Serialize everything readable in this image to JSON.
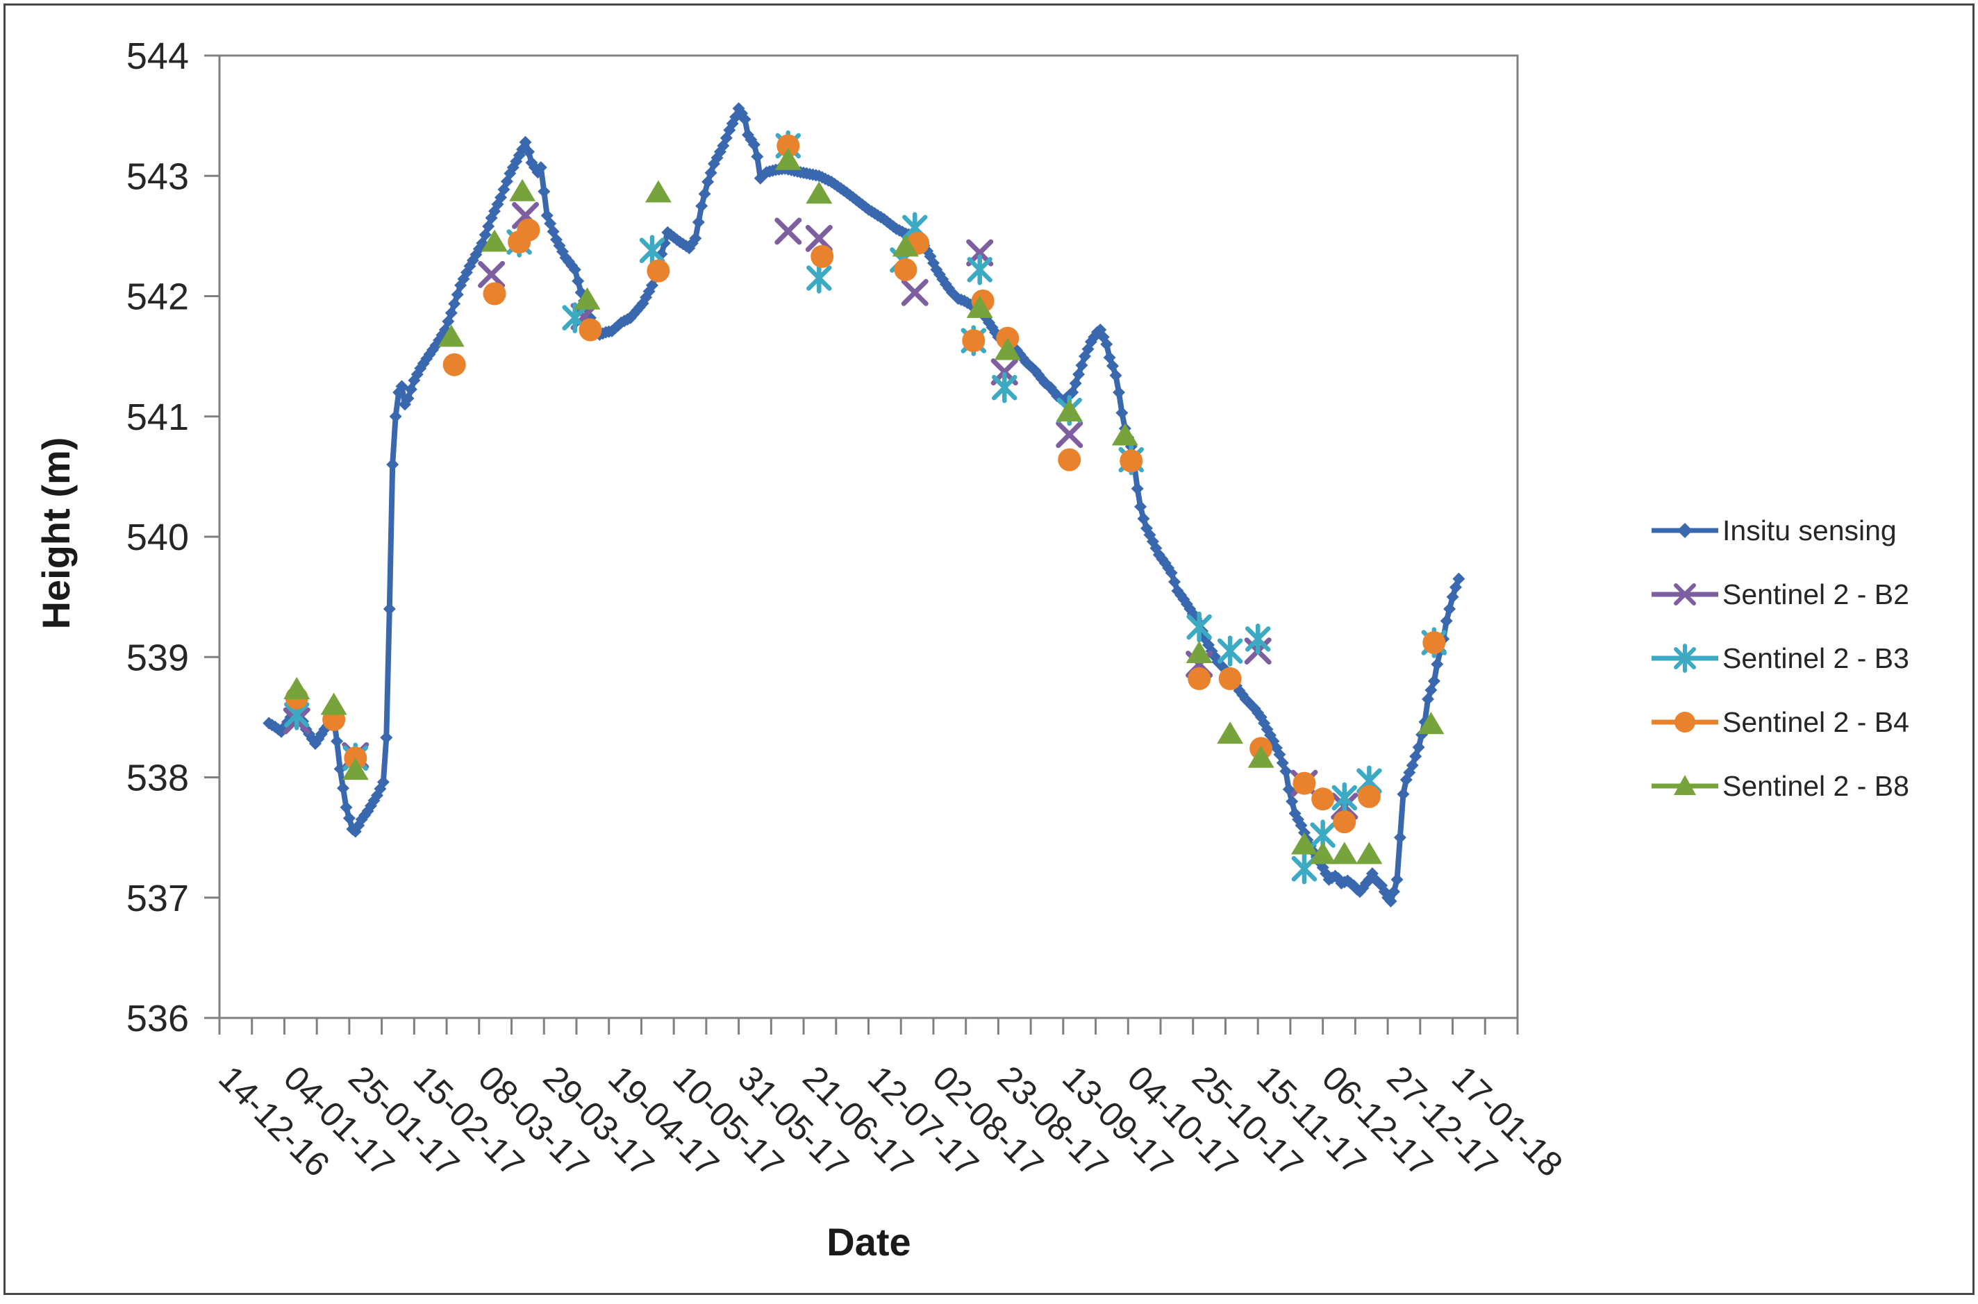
{
  "figure": {
    "background": "#ffffff",
    "border_color": "#464646",
    "frame_color": "#808080",
    "text_color": "#262626"
  },
  "chart_data": {
    "type": "line",
    "title": "",
    "xlabel": "Date",
    "ylabel": "Height (m)",
    "ylim": [
      536,
      544
    ],
    "yticks": [
      536,
      537,
      538,
      539,
      540,
      541,
      542,
      543,
      544
    ],
    "grid": false,
    "legend_position": "right",
    "x_axis": {
      "date_of_day0": "14-12-16",
      "label_interval_days": 21,
      "minor_tick_interval_days": 10.5,
      "axis_span_days": 420,
      "tick_labels": [
        "14-12-16",
        "04-01-17",
        "25-01-17",
        "15-02-17",
        "08-03-17",
        "29-03-17",
        "19-04-17",
        "10-05-17",
        "31-05-17",
        "21-06-17",
        "12-07-17",
        "02-08-17",
        "23-08-17",
        "13-09-17",
        "04-10-17",
        "25-10-17",
        "15-11-17",
        "06-12-17",
        "27-12-17",
        "17-01-18"
      ]
    },
    "series": [
      {
        "name": "Insitu sensing",
        "type": "line",
        "marker": "diamond",
        "color": "#3A68AE",
        "points_format": [
          "days_since_14-12-16",
          "height_m"
        ],
        "points": [
          [
            16,
            538.45
          ],
          [
            18,
            538.42
          ],
          [
            20,
            538.38
          ],
          [
            23,
            538.5
          ],
          [
            26,
            538.53
          ],
          [
            28,
            538.4
          ],
          [
            31,
            538.28
          ],
          [
            34,
            538.4
          ],
          [
            37,
            538.49
          ],
          [
            38,
            538.3
          ],
          [
            39,
            538.07
          ],
          [
            41,
            537.75
          ],
          [
            43,
            537.57
          ],
          [
            44,
            537.55
          ],
          [
            46,
            537.65
          ],
          [
            48,
            537.72
          ],
          [
            51,
            537.85
          ],
          [
            53,
            537.96
          ],
          [
            54,
            538.33
          ],
          [
            55,
            539.4
          ],
          [
            56,
            540.6
          ],
          [
            57,
            541.0
          ],
          [
            58,
            541.2
          ],
          [
            59,
            541.25
          ],
          [
            60,
            541.1
          ],
          [
            61,
            541.15
          ],
          [
            63,
            541.3
          ],
          [
            65,
            541.4
          ],
          [
            67,
            541.48
          ],
          [
            70,
            541.59
          ],
          [
            73,
            541.72
          ],
          [
            75,
            541.86
          ],
          [
            78,
            542.09
          ],
          [
            81,
            542.25
          ],
          [
            85,
            542.44
          ],
          [
            88,
            542.65
          ],
          [
            91,
            542.82
          ],
          [
            94,
            543.02
          ],
          [
            96,
            543.12
          ],
          [
            98,
            543.22
          ],
          [
            99,
            543.28
          ],
          [
            100,
            543.2
          ],
          [
            101,
            543.11
          ],
          [
            103,
            543.03
          ],
          [
            104,
            543.07
          ],
          [
            106,
            542.67
          ],
          [
            109,
            542.47
          ],
          [
            112,
            542.32
          ],
          [
            115,
            542.22
          ],
          [
            117,
            542.03
          ],
          [
            120,
            541.82
          ],
          [
            122,
            541.7
          ],
          [
            123,
            541.68
          ],
          [
            125,
            541.7
          ],
          [
            127,
            541.71
          ],
          [
            130,
            541.78
          ],
          [
            133,
            541.82
          ],
          [
            137,
            541.94
          ],
          [
            140,
            542.09
          ],
          [
            142,
            542.22
          ],
          [
            143,
            542.35
          ],
          [
            145,
            542.53
          ],
          [
            147,
            542.49
          ],
          [
            149,
            542.45
          ],
          [
            152,
            542.4
          ],
          [
            154,
            542.48
          ],
          [
            156,
            542.75
          ],
          [
            158,
            542.95
          ],
          [
            160,
            543.1
          ],
          [
            163,
            543.25
          ],
          [
            165,
            543.38
          ],
          [
            167,
            543.49
          ],
          [
            168,
            543.56
          ],
          [
            169,
            543.52
          ],
          [
            170,
            543.47
          ],
          [
            171,
            543.34
          ],
          [
            173,
            543.26
          ],
          [
            174,
            543.16
          ],
          [
            175,
            542.98
          ],
          [
            177,
            543.03
          ],
          [
            180,
            543.05
          ],
          [
            183,
            543.06
          ],
          [
            188,
            543.03
          ],
          [
            194,
            543.0
          ],
          [
            198,
            542.95
          ],
          [
            203,
            542.86
          ],
          [
            207,
            542.78
          ],
          [
            210,
            542.72
          ],
          [
            215,
            542.64
          ],
          [
            219,
            542.56
          ],
          [
            222,
            542.52
          ],
          [
            225,
            542.5
          ],
          [
            228,
            542.42
          ],
          [
            230,
            542.33
          ],
          [
            232,
            542.22
          ],
          [
            235,
            542.1
          ],
          [
            237,
            542.03
          ],
          [
            239,
            541.98
          ],
          [
            241,
            541.96
          ],
          [
            243,
            541.93
          ],
          [
            245,
            541.91
          ],
          [
            246,
            541.9
          ],
          [
            249,
            541.78
          ],
          [
            252,
            541.66
          ],
          [
            256,
            541.58
          ],
          [
            258,
            541.55
          ],
          [
            261,
            541.45
          ],
          [
            264,
            541.38
          ],
          [
            267,
            541.28
          ],
          [
            269,
            541.24
          ],
          [
            271,
            541.17
          ],
          [
            273,
            541.13
          ],
          [
            276,
            541.2
          ],
          [
            278,
            541.35
          ],
          [
            280,
            541.5
          ],
          [
            282,
            541.62
          ],
          [
            284,
            541.7
          ],
          [
            285,
            541.72
          ],
          [
            286,
            541.66
          ],
          [
            287,
            541.6
          ],
          [
            288,
            541.49
          ],
          [
            289,
            541.42
          ],
          [
            290,
            541.34
          ],
          [
            291,
            541.2
          ],
          [
            292,
            541.03
          ],
          [
            293,
            540.9
          ],
          [
            295,
            540.75
          ],
          [
            296,
            540.6
          ],
          [
            297,
            540.4
          ],
          [
            298,
            540.25
          ],
          [
            299,
            540.15
          ],
          [
            300,
            540.07
          ],
          [
            302,
            539.96
          ],
          [
            304,
            539.85
          ],
          [
            306,
            539.78
          ],
          [
            308,
            539.7
          ],
          [
            310,
            539.55
          ],
          [
            312,
            539.48
          ],
          [
            314,
            539.4
          ],
          [
            317,
            539.28
          ],
          [
            319,
            539.15
          ],
          [
            321,
            539.05
          ],
          [
            323,
            538.96
          ],
          [
            326,
            538.88
          ],
          [
            328,
            538.8
          ],
          [
            330,
            538.72
          ],
          [
            332,
            538.65
          ],
          [
            335,
            538.57
          ],
          [
            337,
            538.5
          ],
          [
            339,
            538.4
          ],
          [
            341,
            538.3
          ],
          [
            343,
            538.19
          ],
          [
            345,
            538.05
          ],
          [
            346,
            537.9
          ],
          [
            348,
            537.7
          ],
          [
            350,
            537.6
          ],
          [
            352,
            537.48
          ],
          [
            354,
            537.38
          ],
          [
            357,
            537.25
          ],
          [
            359,
            537.15
          ],
          [
            361,
            537.18
          ],
          [
            362,
            537.16
          ],
          [
            363,
            537.12
          ],
          [
            365,
            537.14
          ],
          [
            367,
            537.1
          ],
          [
            368,
            537.07
          ],
          [
            369,
            537.05
          ],
          [
            370,
            537.08
          ],
          [
            371,
            537.12
          ],
          [
            372,
            537.15
          ],
          [
            373,
            537.2
          ],
          [
            374,
            537.15
          ],
          [
            376,
            537.1
          ],
          [
            377,
            537.05
          ],
          [
            378,
            537.0
          ],
          [
            379,
            536.97
          ],
          [
            380,
            537.05
          ],
          [
            381,
            537.15
          ],
          [
            382,
            537.5
          ],
          [
            383,
            537.86
          ],
          [
            384,
            537.98
          ],
          [
            386,
            538.1
          ],
          [
            388,
            538.25
          ],
          [
            390,
            538.46
          ],
          [
            391,
            538.65
          ],
          [
            393,
            538.8
          ],
          [
            394,
            538.94
          ],
          [
            395,
            539.05
          ],
          [
            396,
            539.15
          ],
          [
            397,
            539.3
          ],
          [
            398,
            539.4
          ],
          [
            399,
            539.5
          ],
          [
            400,
            539.58
          ],
          [
            401,
            539.65
          ]
        ]
      },
      {
        "name": "Sentinel 2 - B2",
        "type": "scatter",
        "marker": "x",
        "color": "#7D5FA0",
        "points": [
          [
            25,
            538.47
          ],
          [
            44,
            538.18
          ],
          [
            88,
            542.18
          ],
          [
            99,
            542.67
          ],
          [
            118,
            541.83
          ],
          [
            184,
            542.54
          ],
          [
            194,
            542.48
          ],
          [
            225,
            542.03
          ],
          [
            246,
            542.36
          ],
          [
            254,
            541.37
          ],
          [
            275,
            540.85
          ],
          [
            317,
            538.94
          ],
          [
            336,
            539.05
          ],
          [
            351,
            537.95
          ],
          [
            364,
            537.76
          ]
        ]
      },
      {
        "name": "Sentinel 2 - B3",
        "type": "scatter",
        "marker": "asterisk",
        "color": "#3BAAC2",
        "points": [
          [
            25,
            538.52
          ],
          [
            44,
            538.16
          ],
          [
            97,
            542.45
          ],
          [
            115,
            541.82
          ],
          [
            140,
            542.38
          ],
          [
            184,
            543.25
          ],
          [
            194,
            542.15
          ],
          [
            221,
            542.3
          ],
          [
            225,
            542.57
          ],
          [
            244,
            541.63
          ],
          [
            246,
            542.22
          ],
          [
            254,
            541.24
          ],
          [
            275,
            541.05
          ],
          [
            295,
            540.64
          ],
          [
            317,
            539.25
          ],
          [
            327,
            539.05
          ],
          [
            336,
            539.15
          ],
          [
            351,
            537.24
          ],
          [
            357,
            537.52
          ],
          [
            364,
            537.83
          ],
          [
            372,
            537.97
          ],
          [
            393,
            539.12
          ]
        ]
      },
      {
        "name": "Sentinel 2 - B4",
        "type": "scatter",
        "marker": "circle",
        "color": "#E8822D",
        "points": [
          [
            25,
            538.66
          ],
          [
            37,
            538.48
          ],
          [
            44,
            538.16
          ],
          [
            76,
            541.43
          ],
          [
            89,
            542.02
          ],
          [
            97,
            542.45
          ],
          [
            100,
            542.55
          ],
          [
            120,
            541.72
          ],
          [
            142,
            542.21
          ],
          [
            184,
            543.25
          ],
          [
            195,
            542.33
          ],
          [
            222,
            542.22
          ],
          [
            226,
            542.44
          ],
          [
            244,
            541.63
          ],
          [
            247,
            541.96
          ],
          [
            255,
            541.65
          ],
          [
            275,
            540.64
          ],
          [
            295,
            540.63
          ],
          [
            317,
            538.82
          ],
          [
            327,
            538.82
          ],
          [
            337,
            538.24
          ],
          [
            351,
            537.95
          ],
          [
            357,
            537.82
          ],
          [
            364,
            537.63
          ],
          [
            372,
            537.84
          ],
          [
            393,
            539.12
          ]
        ]
      },
      {
        "name": "Sentinel 2 - B8",
        "type": "scatter",
        "marker": "triangle",
        "color": "#76A33C",
        "points": [
          [
            25,
            538.73
          ],
          [
            37,
            538.6
          ],
          [
            44,
            538.06
          ],
          [
            75,
            541.66
          ],
          [
            89,
            542.45
          ],
          [
            98,
            542.87
          ],
          [
            119,
            541.97
          ],
          [
            142,
            542.86
          ],
          [
            184,
            543.13
          ],
          [
            194,
            542.85
          ],
          [
            222,
            542.41
          ],
          [
            246,
            541.9
          ],
          [
            255,
            541.55
          ],
          [
            275,
            541.04
          ],
          [
            293,
            540.84
          ],
          [
            317,
            539.03
          ],
          [
            327,
            538.36
          ],
          [
            337,
            538.16
          ],
          [
            351,
            537.44
          ],
          [
            357,
            537.36
          ],
          [
            364,
            537.36
          ],
          [
            372,
            537.36
          ],
          [
            392,
            538.44
          ]
        ]
      }
    ]
  }
}
